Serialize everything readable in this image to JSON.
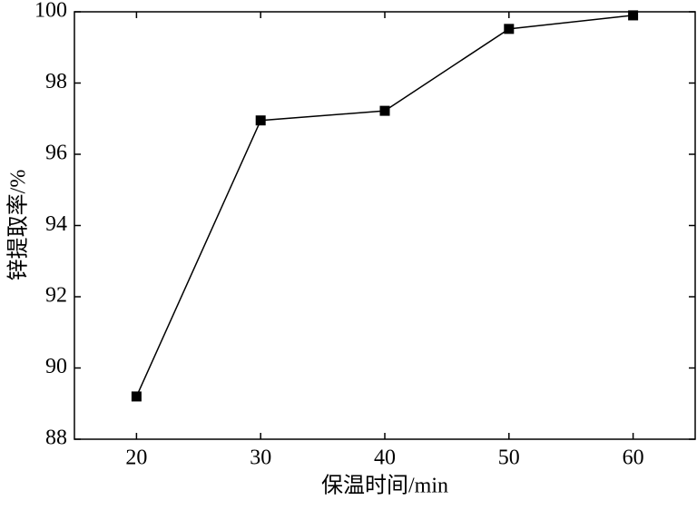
{
  "chart_data": {
    "type": "line",
    "x_label": "保温时间/min",
    "y_label": "锌提取率/%",
    "x": [
      20,
      30,
      40,
      50,
      60
    ],
    "series": [
      {
        "name": "锌提取率",
        "color": "#000000",
        "values": [
          89.2,
          96.95,
          97.22,
          99.52,
          99.9
        ]
      }
    ],
    "xlim": [
      15,
      65
    ],
    "xticks": [
      20,
      30,
      40,
      50,
      60
    ],
    "ylim": [
      88,
      100
    ],
    "yticks": [
      88,
      90,
      92,
      94,
      96,
      98,
      100
    ],
    "grid": false,
    "legend": false,
    "marker": "square"
  }
}
